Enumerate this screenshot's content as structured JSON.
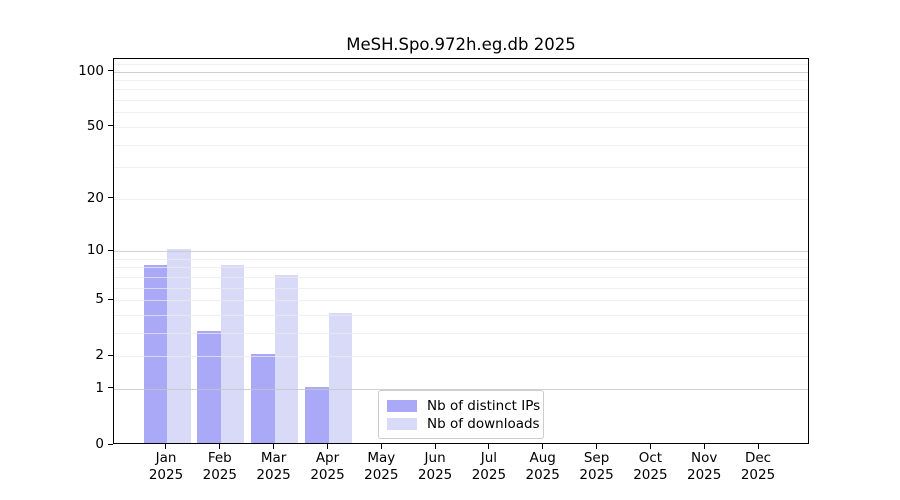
{
  "chart_data": {
    "type": "bar",
    "title": "MeSH.Spo.972h.eg.db 2025",
    "categories": [
      "Jan 2025",
      "Feb 2025",
      "Mar 2025",
      "Apr 2025",
      "May 2025",
      "Jun 2025",
      "Jul 2025",
      "Aug 2025",
      "Sep 2025",
      "Oct 2025",
      "Nov 2025",
      "Dec 2025"
    ],
    "series": [
      {
        "name": "Nb of distinct IPs",
        "color": "#a9a9f7",
        "values": [
          8,
          3,
          2,
          1,
          0,
          0,
          0,
          0,
          0,
          0,
          0,
          0
        ]
      },
      {
        "name": "Nb of downloads",
        "color": "#d9d9f8",
        "values": [
          10,
          8,
          7,
          4,
          0,
          0,
          0,
          0,
          0,
          0,
          0,
          0
        ]
      }
    ],
    "xlabel": "",
    "ylabel": "",
    "yscale": "log(1+x)",
    "ylim": [
      0,
      117
    ],
    "ytick_values": [
      0,
      1,
      2,
      5,
      10,
      20,
      50,
      100
    ],
    "y_gridlines_major": [
      1,
      10,
      100
    ],
    "y_gridlines_minor": [
      2,
      3,
      4,
      5,
      6,
      7,
      8,
      9,
      20,
      30,
      40,
      50,
      60,
      70,
      80,
      90,
      110
    ],
    "grid": "horizontal",
    "legend_position": "lower center inside"
  },
  "colors": {
    "spine": "#000000",
    "background": "#ffffff",
    "grid_major": "#c6c6c6",
    "grid_minor": "#e9e9e9",
    "legend_border": "#cccccc"
  }
}
